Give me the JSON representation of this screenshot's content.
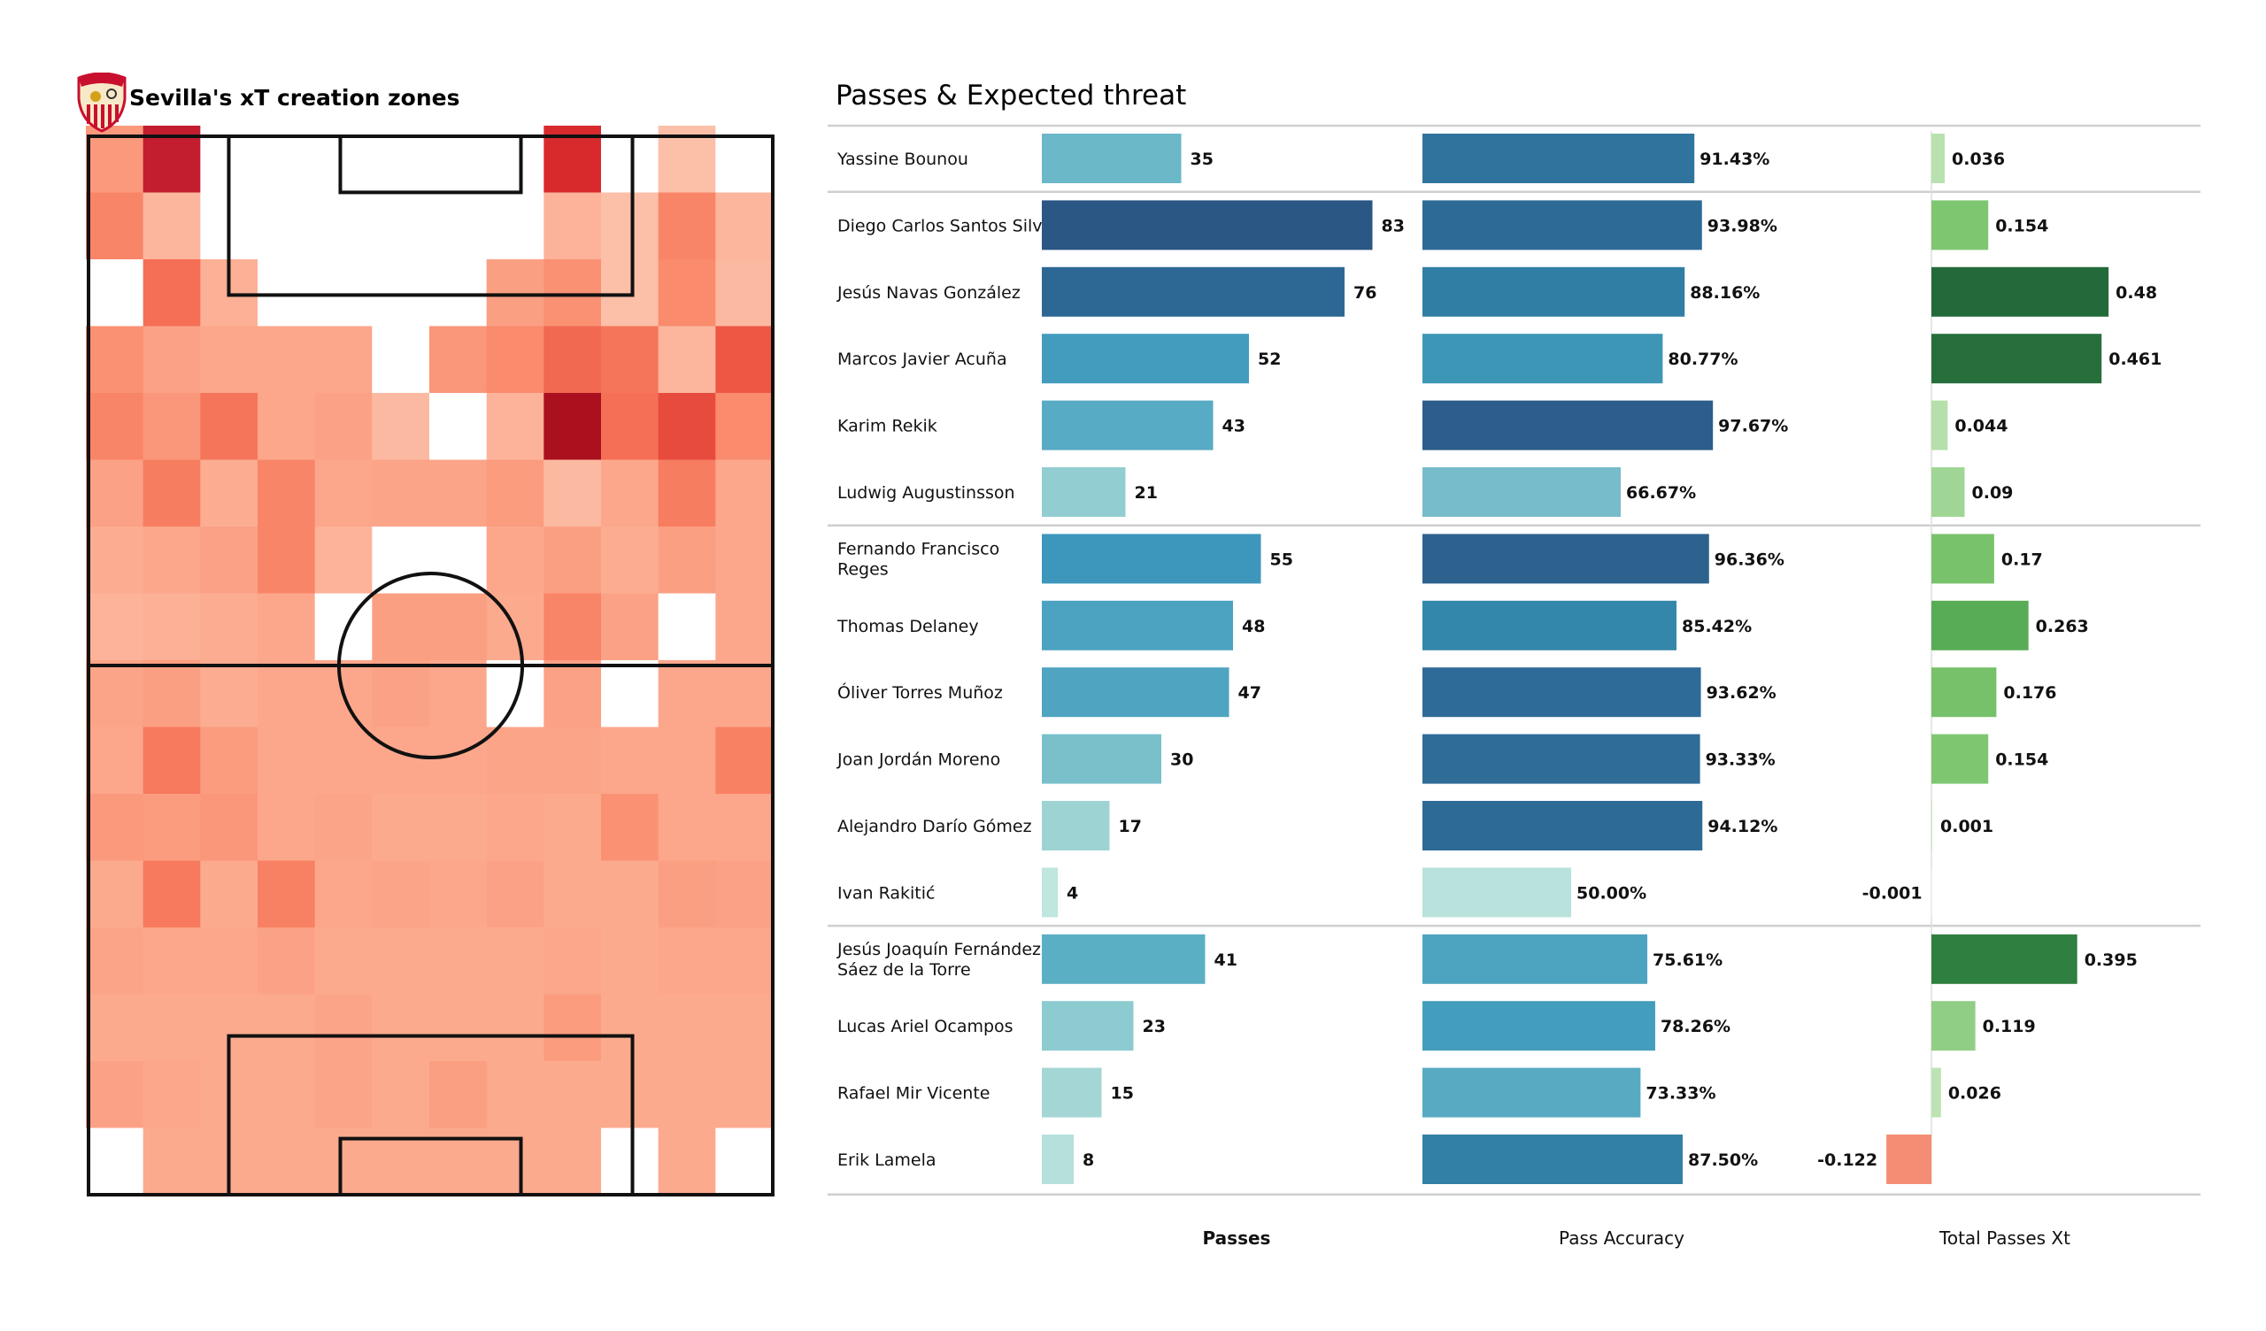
{
  "left_panel": {
    "title": "Sevilla's xT creation zones",
    "badge_icon": "sevilla-crest-icon"
  },
  "right_panel": {
    "title": "Passes & Expected threat"
  },
  "chart_data": [
    {
      "type": "heatmap",
      "title": "Sevilla's xT creation zones",
      "rows": 16,
      "cols": 12,
      "colormap": "Reds",
      "note": "Relative intensity 0-1 per zone, top row = attacking end; 0 = no value (white)",
      "values": [
        [
          0.35,
          0.8,
          0.0,
          0.0,
          0.0,
          0.0,
          0.0,
          0.0,
          0.72,
          0.0,
          0.22,
          0.0
        ],
        [
          0.42,
          0.25,
          0.0,
          0.0,
          0.0,
          0.0,
          0.0,
          0.0,
          0.26,
          0.22,
          0.42,
          0.25
        ],
        [
          0.0,
          0.5,
          0.27,
          0.0,
          0.0,
          0.0,
          0.0,
          0.33,
          0.38,
          0.22,
          0.4,
          0.24
        ],
        [
          0.38,
          0.32,
          0.3,
          0.3,
          0.3,
          0.0,
          0.36,
          0.4,
          0.52,
          0.48,
          0.25,
          0.58
        ],
        [
          0.42,
          0.36,
          0.48,
          0.3,
          0.32,
          0.24,
          0.0,
          0.26,
          0.95,
          0.5,
          0.62,
          0.4
        ],
        [
          0.32,
          0.45,
          0.28,
          0.42,
          0.3,
          0.31,
          0.31,
          0.34,
          0.24,
          0.3,
          0.45,
          0.3
        ],
        [
          0.28,
          0.3,
          0.32,
          0.42,
          0.26,
          0.0,
          0.0,
          0.3,
          0.33,
          0.28,
          0.33,
          0.3
        ],
        [
          0.26,
          0.27,
          0.28,
          0.3,
          0.0,
          0.33,
          0.33,
          0.29,
          0.42,
          0.32,
          0.0,
          0.3
        ],
        [
          0.31,
          0.33,
          0.28,
          0.3,
          0.3,
          0.32,
          0.3,
          0.0,
          0.32,
          0.0,
          0.3,
          0.3
        ],
        [
          0.3,
          0.46,
          0.34,
          0.3,
          0.3,
          0.3,
          0.3,
          0.31,
          0.31,
          0.3,
          0.3,
          0.44
        ],
        [
          0.35,
          0.34,
          0.36,
          0.3,
          0.31,
          0.29,
          0.29,
          0.3,
          0.29,
          0.38,
          0.3,
          0.3
        ],
        [
          0.29,
          0.46,
          0.29,
          0.44,
          0.3,
          0.31,
          0.3,
          0.32,
          0.29,
          0.29,
          0.33,
          0.32
        ],
        [
          0.31,
          0.3,
          0.3,
          0.32,
          0.29,
          0.29,
          0.29,
          0.29,
          0.3,
          0.29,
          0.3,
          0.3
        ],
        [
          0.29,
          0.29,
          0.29,
          0.29,
          0.31,
          0.29,
          0.29,
          0.29,
          0.34,
          0.29,
          0.29,
          0.29
        ],
        [
          0.32,
          0.3,
          0.29,
          0.29,
          0.31,
          0.29,
          0.33,
          0.29,
          0.29,
          0.29,
          0.29,
          0.29
        ],
        [
          0.0,
          0.29,
          0.29,
          0.29,
          0.29,
          0.29,
          0.29,
          0.29,
          0.29,
          0.0,
          0.29,
          0.0
        ]
      ]
    },
    {
      "type": "bar",
      "title": "Passes & Expected threat",
      "orientation": "horizontal",
      "column_headers": [
        "Passes",
        "Pass Accuracy",
        "Total Passes Xt"
      ],
      "bold_header": "Passes",
      "groups": [
        {
          "rows": [
            0
          ]
        },
        {
          "rows": [
            1,
            2,
            3,
            4,
            5
          ]
        },
        {
          "rows": [
            6,
            7,
            8,
            9,
            10,
            11
          ]
        },
        {
          "rows": [
            12,
            13,
            14,
            15
          ]
        }
      ],
      "players": [
        {
          "name": [
            "Yassine Bounou"
          ],
          "passes": 35,
          "accuracy": 91.43,
          "accuracy_label": "91.43%",
          "xt": 0.036,
          "xt_label": "0.036"
        },
        {
          "name": [
            "Diego Carlos Santos Silva"
          ],
          "passes": 83,
          "accuracy": 93.98,
          "accuracy_label": "93.98%",
          "xt": 0.154,
          "xt_label": "0.154"
        },
        {
          "name": [
            "Jesús Navas González"
          ],
          "passes": 76,
          "accuracy": 88.16,
          "accuracy_label": "88.16%",
          "xt": 0.48,
          "xt_label": "0.48"
        },
        {
          "name": [
            "Marcos Javier Acuña"
          ],
          "passes": 52,
          "accuracy": 80.77,
          "accuracy_label": "80.77%",
          "xt": 0.461,
          "xt_label": "0.461"
        },
        {
          "name": [
            "Karim Rekik"
          ],
          "passes": 43,
          "accuracy": 97.67,
          "accuracy_label": "97.67%",
          "xt": 0.044,
          "xt_label": "0.044"
        },
        {
          "name": [
            "Ludwig Augustinsson"
          ],
          "passes": 21,
          "accuracy": 66.67,
          "accuracy_label": "66.67%",
          "xt": 0.09,
          "xt_label": "0.09"
        },
        {
          "name": [
            "Fernando Francisco",
            "Reges"
          ],
          "passes": 55,
          "accuracy": 96.36,
          "accuracy_label": "96.36%",
          "xt": 0.17,
          "xt_label": "0.17"
        },
        {
          "name": [
            "Thomas Delaney"
          ],
          "passes": 48,
          "accuracy": 85.42,
          "accuracy_label": "85.42%",
          "xt": 0.263,
          "xt_label": "0.263"
        },
        {
          "name": [
            "Óliver Torres Muñoz"
          ],
          "passes": 47,
          "accuracy": 93.62,
          "accuracy_label": "93.62%",
          "xt": 0.176,
          "xt_label": "0.176"
        },
        {
          "name": [
            "Joan Jordán Moreno"
          ],
          "passes": 30,
          "accuracy": 93.33,
          "accuracy_label": "93.33%",
          "xt": 0.154,
          "xt_label": "0.154"
        },
        {
          "name": [
            "Alejandro Darío Gómez"
          ],
          "passes": 17,
          "accuracy": 94.12,
          "accuracy_label": "94.12%",
          "xt": 0.001,
          "xt_label": "0.001"
        },
        {
          "name": [
            "Ivan Rakitić"
          ],
          "passes": 4,
          "accuracy": 50.0,
          "accuracy_label": "50.00%",
          "xt": -0.001,
          "xt_label": "-0.001"
        },
        {
          "name": [
            "Jesús Joaquín Fernández",
            "Sáez de la Torre"
          ],
          "passes": 41,
          "accuracy": 75.61,
          "accuracy_label": "75.61%",
          "xt": 0.395,
          "xt_label": "0.395"
        },
        {
          "name": [
            "Lucas Ariel Ocampos"
          ],
          "passes": 23,
          "accuracy": 78.26,
          "accuracy_label": "78.26%",
          "xt": 0.119,
          "xt_label": "0.119"
        },
        {
          "name": [
            "Rafael Mir Vicente"
          ],
          "passes": 15,
          "accuracy": 73.33,
          "accuracy_label": "73.33%",
          "xt": 0.026,
          "xt_label": "0.026"
        },
        {
          "name": [
            "Erik Lamela"
          ],
          "passes": 8,
          "accuracy": 87.5,
          "accuracy_label": "87.50%",
          "xt": -0.122,
          "xt_label": "-0.122"
        }
      ],
      "colors": {
        "passes_scale": [
          "#c9ebe3",
          "#a7d8d6",
          "#7fc4cc",
          "#5aaec5",
          "#3c96bc",
          "#2f78a2",
          "#2b5785"
        ],
        "accuracy_scale": [
          "#c2e7dd",
          "#9dd3d5",
          "#6db6c7",
          "#45a0bf",
          "#3388aa",
          "#2f6e9a",
          "#2b5584"
        ],
        "xt_positive_scale": [
          "#c9e8c0",
          "#a4d89a",
          "#7cc46e",
          "#60b35a",
          "#459a4a",
          "#2e7d3f",
          "#236a3a"
        ],
        "xt_negative": "#f58d74"
      }
    }
  ]
}
